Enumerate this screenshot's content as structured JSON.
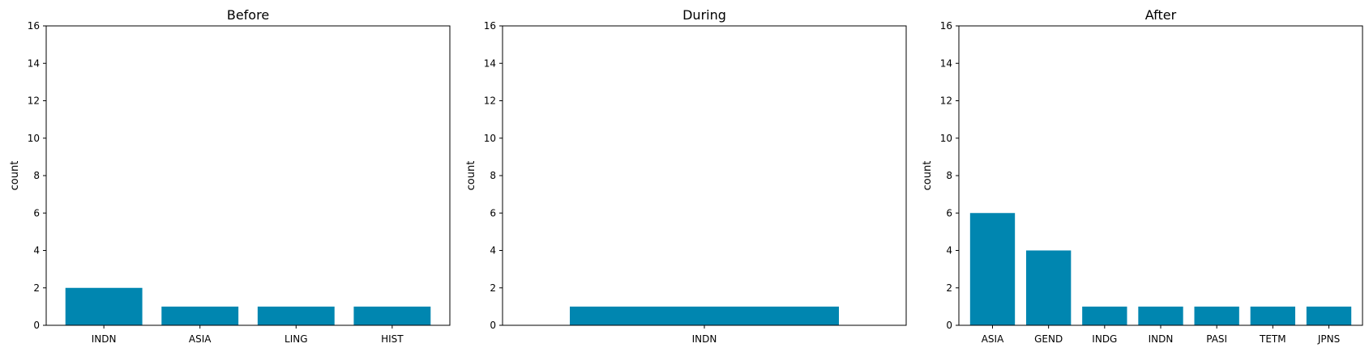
{
  "colors": {
    "bar": "#0086b0",
    "axis": "#000000",
    "background": "#ffffff"
  },
  "chart_data": [
    {
      "type": "bar",
      "title": "Before",
      "xlabel": "",
      "ylabel": "count",
      "ylim": [
        0,
        16
      ],
      "yticks": [
        0,
        2,
        4,
        6,
        8,
        10,
        12,
        14,
        16
      ],
      "grid": false,
      "categories": [
        "INDN",
        "ASIA",
        "LING",
        "HIST"
      ],
      "values": [
        2,
        1,
        1,
        1
      ]
    },
    {
      "type": "bar",
      "title": "During",
      "xlabel": "",
      "ylabel": "count",
      "ylim": [
        0,
        16
      ],
      "yticks": [
        0,
        2,
        4,
        6,
        8,
        10,
        12,
        14,
        16
      ],
      "grid": false,
      "categories": [
        "INDN"
      ],
      "values": [
        1
      ]
    },
    {
      "type": "bar",
      "title": "After",
      "xlabel": "",
      "ylabel": "count",
      "ylim": [
        0,
        16
      ],
      "yticks": [
        0,
        2,
        4,
        6,
        8,
        10,
        12,
        14,
        16
      ],
      "grid": false,
      "categories": [
        "ASIA",
        "GEND",
        "INDG",
        "INDN",
        "PASI",
        "TETM",
        "JPNS"
      ],
      "values": [
        6,
        4,
        1,
        1,
        1,
        1,
        1
      ]
    }
  ]
}
